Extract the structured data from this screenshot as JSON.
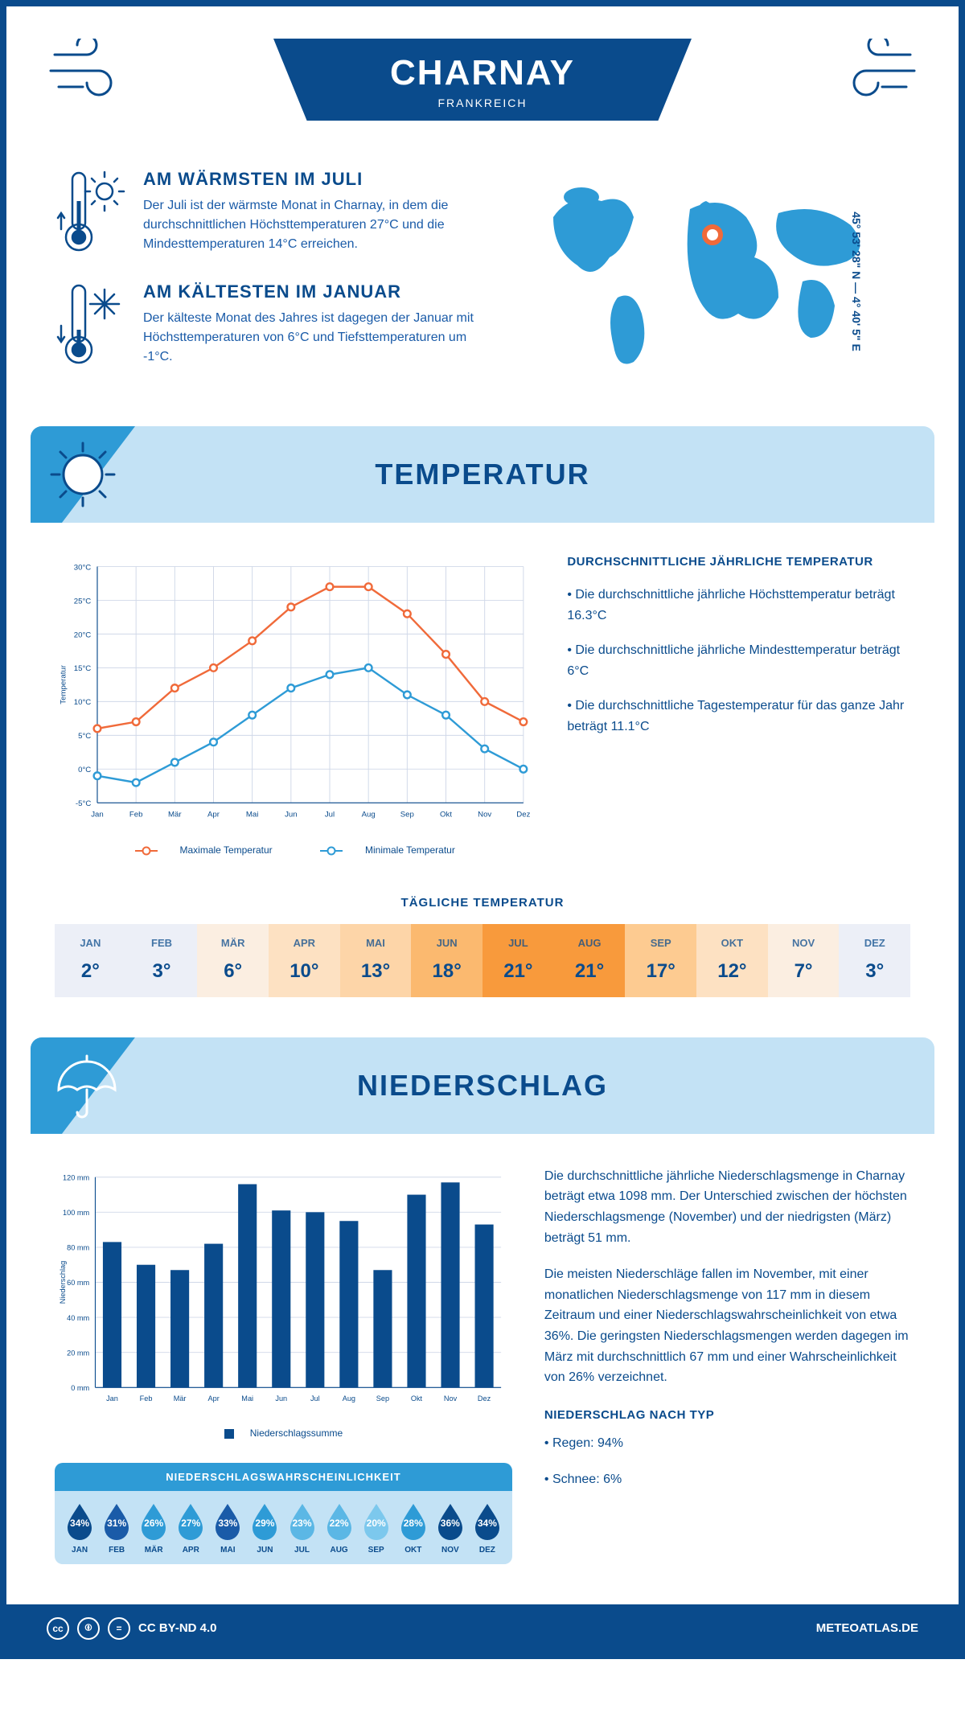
{
  "header": {
    "city": "CHARNAY",
    "country": "FRANKREICH",
    "coordinates": "45° 53' 28\" N — 4° 40' 5\" E"
  },
  "facts": {
    "warm": {
      "title": "AM WÄRMSTEN IM JULI",
      "text": "Der Juli ist der wärmste Monat in Charnay, in dem die durchschnittlichen Höchsttemperaturen 27°C und die Mindesttemperaturen 14°C erreichen."
    },
    "cold": {
      "title": "AM KÄLTESTEN IM JANUAR",
      "text": "Der kälteste Monat des Jahres ist dagegen der Januar mit Höchsttemperaturen von 6°C und Tiefsttemperaturen um -1°C."
    }
  },
  "temp_section": {
    "title": "TEMPERATUR",
    "chart": {
      "months": [
        "Jan",
        "Feb",
        "Mär",
        "Apr",
        "Mai",
        "Jun",
        "Jul",
        "Aug",
        "Sep",
        "Okt",
        "Nov",
        "Dez"
      ],
      "max": [
        6,
        7,
        12,
        15,
        19,
        24,
        27,
        27,
        23,
        17,
        10,
        7
      ],
      "min": [
        -1,
        -2,
        1,
        4,
        8,
        12,
        14,
        15,
        11,
        8,
        3,
        0
      ],
      "y_min": -5,
      "y_max": 30,
      "y_step": 5,
      "max_color": "#f06a3a",
      "min_color": "#2e9bd6",
      "grid_color": "#d0d8e8",
      "y_axis_label": "Temperatur",
      "legend_max": "Maximale Temperatur",
      "legend_min": "Minimale Temperatur"
    },
    "avg_title": "DURCHSCHNITTLICHE JÄHRLICHE TEMPERATUR",
    "avg_bullets": [
      "• Die durchschnittliche jährliche Höchsttemperatur beträgt 16.3°C",
      "• Die durchschnittliche jährliche Mindesttemperatur beträgt 6°C",
      "• Die durchschnittliche Tagestemperatur für das ganze Jahr beträgt 11.1°C"
    ],
    "daily_title": "TÄGLICHE TEMPERATUR",
    "daily": {
      "months": [
        "JAN",
        "FEB",
        "MÄR",
        "APR",
        "MAI",
        "JUN",
        "JUL",
        "AUG",
        "SEP",
        "OKT",
        "NOV",
        "DEZ"
      ],
      "values": [
        "2°",
        "3°",
        "6°",
        "10°",
        "13°",
        "18°",
        "21°",
        "21°",
        "17°",
        "12°",
        "7°",
        "3°"
      ],
      "colors": [
        "#eceff7",
        "#eceff7",
        "#fbeee1",
        "#fde1c2",
        "#fdd5a8",
        "#fbb96f",
        "#f89a3c",
        "#f89a3c",
        "#fdcb91",
        "#fde1c2",
        "#fbeee1",
        "#eceff7"
      ]
    }
  },
  "precip_section": {
    "title": "NIEDERSCHLAG",
    "chart": {
      "months": [
        "Jan",
        "Feb",
        "Mär",
        "Apr",
        "Mai",
        "Jun",
        "Jul",
        "Aug",
        "Sep",
        "Okt",
        "Nov",
        "Dez"
      ],
      "values": [
        83,
        70,
        67,
        82,
        116,
        101,
        100,
        95,
        67,
        110,
        117,
        93
      ],
      "y_min": 0,
      "y_max": 120,
      "y_step": 20,
      "bar_color": "#0a4b8c",
      "y_axis_label": "Niederschlag",
      "legend": "Niederschlagssumme"
    },
    "para1": "Die durchschnittliche jährliche Niederschlagsmenge in Charnay beträgt etwa 1098 mm. Der Unterschied zwischen der höchsten Niederschlagsmenge (November) und der niedrigsten (März) beträgt 51 mm.",
    "para2": "Die meisten Niederschläge fallen im November, mit einer monatlichen Niederschlagsmenge von 117 mm in diesem Zeitraum und einer Niederschlagswahrscheinlichkeit von etwa 36%. Die geringsten Niederschlagsmengen werden dagegen im März mit durchschnittlich 67 mm und einer Wahrscheinlichkeit von 26% verzeichnet.",
    "type_title": "NIEDERSCHLAG NACH TYP",
    "type_bullets": [
      "• Regen: 94%",
      "• Schnee: 6%"
    ],
    "prob": {
      "title": "NIEDERSCHLAGSWAHRSCHEINLICHKEIT",
      "months": [
        "JAN",
        "FEB",
        "MÄR",
        "APR",
        "MAI",
        "JUN",
        "JUL",
        "AUG",
        "SEP",
        "OKT",
        "NOV",
        "DEZ"
      ],
      "values": [
        "34%",
        "31%",
        "26%",
        "27%",
        "33%",
        "29%",
        "23%",
        "22%",
        "20%",
        "28%",
        "36%",
        "34%"
      ],
      "colors": [
        "#0a4b8c",
        "#1a5ba8",
        "#2e9bd6",
        "#2e9bd6",
        "#1a5ba8",
        "#2e9bd6",
        "#5bb7e5",
        "#5bb7e5",
        "#7cc8ed",
        "#2e9bd6",
        "#0a4b8c",
        "#0a4b8c"
      ]
    }
  },
  "footer": {
    "license": "CC BY-ND 4.0",
    "site": "METEOATLAS.DE"
  }
}
